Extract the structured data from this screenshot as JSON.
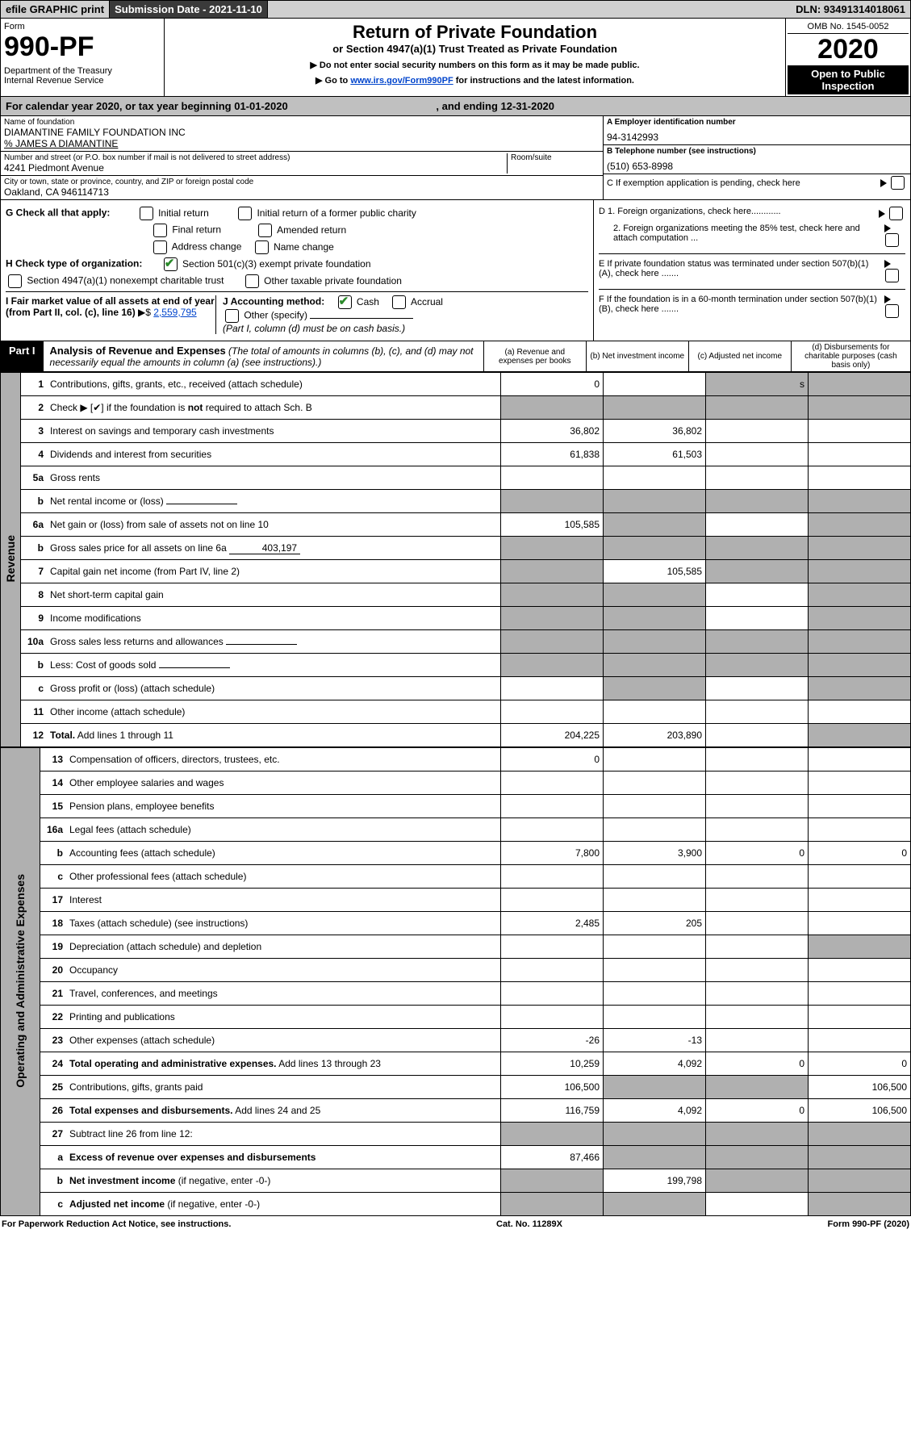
{
  "top": {
    "efile": "efile GRAPHIC print",
    "submission_label": "Submission Date - 2021-11-10",
    "dln": "DLN: 93491314018061"
  },
  "header": {
    "form_word": "Form",
    "form_number": "990-PF",
    "dept1": "Department of the Treasury",
    "dept2": "Internal Revenue Service",
    "title": "Return of Private Foundation",
    "subtitle": "or Section 4947(a)(1) Trust Treated as Private Foundation",
    "instr1": "▶ Do not enter social security numbers on this form as it may be made public.",
    "instr2_a": "▶ Go to ",
    "instr2_link": "www.irs.gov/Form990PF",
    "instr2_b": " for instructions and the latest information.",
    "omb": "OMB No. 1545-0052",
    "year": "2020",
    "inspection1": "Open to Public",
    "inspection2": "Inspection"
  },
  "calendar": {
    "a": "For calendar year 2020, or tax year beginning 01-01-2020",
    "b": ", and ending 12-31-2020"
  },
  "entity": {
    "name_label": "Name of foundation",
    "name": "DIAMANTINE FAMILY FOUNDATION INC",
    "care_of": "% JAMES A DIAMANTINE",
    "addr_label": "Number and street (or P.O. box number if mail is not delivered to street address)",
    "room_label": "Room/suite",
    "addr": "4241 Piedmont Avenue",
    "city_label": "City or town, state or province, country, and ZIP or foreign postal code",
    "city": "Oakland, CA  946114713",
    "ein_label": "A Employer identification number",
    "ein": "94-3142993",
    "phone_label": "B Telephone number (see instructions)",
    "phone": "(510) 653-8998",
    "c_label": "C If exemption application is pending, check here"
  },
  "checks": {
    "g_label": "G Check all that apply:",
    "g_initial": "Initial return",
    "g_initial_former": "Initial return of a former public charity",
    "g_final": "Final return",
    "g_amended": "Amended return",
    "g_address": "Address change",
    "g_name": "Name change",
    "h_label": "H Check type of organization:",
    "h_501c3": "Section 501(c)(3) exempt private foundation",
    "h_4947": "Section 4947(a)(1) nonexempt charitable trust",
    "h_other": "Other taxable private foundation",
    "i_label": "I Fair market value of all assets at end of year (from Part II, col. (c), line 16)",
    "i_amount": "2,559,795",
    "j_label": "J Accounting method:",
    "j_cash": "Cash",
    "j_accrual": "Accrual",
    "j_other": "Other (specify)",
    "j_note": "(Part I, column (d) must be on cash basis.)",
    "d1": "D 1. Foreign organizations, check here............",
    "d2": "2. Foreign organizations meeting the 85% test, check here and attach computation ...",
    "e": "E  If private foundation status was terminated under section 507(b)(1)(A), check here .......",
    "f": "F  If the foundation is in a 60-month termination under section 507(b)(1)(B), check here .......",
    "dollar": "▶$ "
  },
  "part1": {
    "label": "Part I",
    "title": "Analysis of Revenue and Expenses",
    "title_note": " (The total of amounts in columns (b), (c), and (d) may not necessarily equal the amounts in column (a) (see instructions).)",
    "col_a": "(a)  Revenue and expenses per books",
    "col_b": "(b)  Net investment income",
    "col_c": "(c)  Adjusted net income",
    "col_d": "(d)  Disbursements for charitable purposes (cash basis only)",
    "side_rev": "Revenue",
    "side_exp": "Operating and Administrative Expenses"
  },
  "rows": [
    {
      "n": "1",
      "d": "Contributions, gifts, grants, etc., received (attach schedule)",
      "a": "0",
      "b": "",
      "c": "s",
      "ds": "s"
    },
    {
      "n": "2",
      "d": "Check ▶ [✔] if the foundation is <b>not</b> required to attach Sch. B",
      "dots": true,
      "as": "s",
      "bs": "s",
      "cs": "s",
      "ds": "s"
    },
    {
      "n": "3",
      "d": "Interest on savings and temporary cash investments",
      "a": "36,802",
      "b": "36,802"
    },
    {
      "n": "4",
      "d": "Dividends and interest from securities",
      "dots": true,
      "a": "61,838",
      "b": "61,503"
    },
    {
      "n": "5a",
      "d": "Gross rents",
      "dots": true
    },
    {
      "n": "b",
      "d": "Net rental income or (loss)",
      "inline": true,
      "as": "s",
      "bs": "s",
      "cs": "s",
      "ds": "s"
    },
    {
      "n": "6a",
      "d": "Net gain or (loss) from sale of assets not on line 10",
      "a": "105,585",
      "bs": "s",
      "ds": "s"
    },
    {
      "n": "b",
      "d": "Gross sales price for all assets on line 6a",
      "inline_val": "403,197",
      "as": "s",
      "bs": "s",
      "cs": "s",
      "ds": "s"
    },
    {
      "n": "7",
      "d": "Capital gain net income (from Part IV, line 2)",
      "dots": true,
      "as": "s",
      "b": "105,585",
      "cs": "s",
      "ds": "s"
    },
    {
      "n": "8",
      "d": "Net short-term capital gain",
      "dots": true,
      "as": "s",
      "bs": "s",
      "ds": "s"
    },
    {
      "n": "9",
      "d": "Income modifications",
      "dots": true,
      "as": "s",
      "bs": "s",
      "ds": "s"
    },
    {
      "n": "10a",
      "d": "Gross sales less returns and allowances",
      "inline": true,
      "as": "s",
      "bs": "s",
      "cs": "s",
      "ds": "s"
    },
    {
      "n": "b",
      "d": "Less: Cost of goods sold",
      "dots": true,
      "inline": true,
      "as": "s",
      "bs": "s",
      "cs": "s",
      "ds": "s"
    },
    {
      "n": "c",
      "d": "Gross profit or (loss) (attach schedule)",
      "dots": true,
      "bs": "s",
      "ds": "s"
    },
    {
      "n": "11",
      "d": "Other income (attach schedule)",
      "dots": true
    },
    {
      "n": "12",
      "d": "<b>Total.</b> Add lines 1 through 11",
      "dots": true,
      "a": "204,225",
      "b": "203,890",
      "ds": "s"
    }
  ],
  "exp_rows": [
    {
      "n": "13",
      "d": "Compensation of officers, directors, trustees, etc.",
      "a": "0"
    },
    {
      "n": "14",
      "d": "Other employee salaries and wages",
      "dots": true
    },
    {
      "n": "15",
      "d": "Pension plans, employee benefits",
      "dots": true
    },
    {
      "n": "16a",
      "d": "Legal fees (attach schedule)",
      "dots": true
    },
    {
      "n": "b",
      "d": "Accounting fees (attach schedule)",
      "dots": true,
      "a": "7,800",
      "b": "3,900",
      "c": "0",
      "dd": "0"
    },
    {
      "n": "c",
      "d": "Other professional fees (attach schedule)",
      "dots": true
    },
    {
      "n": "17",
      "d": "Interest",
      "dots": true
    },
    {
      "n": "18",
      "d": "Taxes (attach schedule) (see instructions)",
      "dots": true,
      "a": "2,485",
      "b": "205"
    },
    {
      "n": "19",
      "d": "Depreciation (attach schedule) and depletion",
      "dots": true,
      "ds": "s"
    },
    {
      "n": "20",
      "d": "Occupancy",
      "dots": true
    },
    {
      "n": "21",
      "d": "Travel, conferences, and meetings",
      "dots": true
    },
    {
      "n": "22",
      "d": "Printing and publications",
      "dots": true
    },
    {
      "n": "23",
      "d": "Other expenses (attach schedule)",
      "dots": true,
      "a": "-26",
      "b": "-13"
    },
    {
      "n": "24",
      "d": "<b>Total operating and administrative expenses.</b> Add lines 13 through 23",
      "dots": true,
      "a": "10,259",
      "b": "4,092",
      "c": "0",
      "dd": "0"
    },
    {
      "n": "25",
      "d": "Contributions, gifts, grants paid",
      "dots": true,
      "a": "106,500",
      "bs": "s",
      "cs": "s",
      "dd": "106,500"
    },
    {
      "n": "26",
      "d": "<b>Total expenses and disbursements.</b> Add lines 24 and 25",
      "a": "116,759",
      "b": "4,092",
      "c": "0",
      "dd": "106,500"
    },
    {
      "n": "27",
      "d": "Subtract line 26 from line 12:",
      "as": "s",
      "bs": "s",
      "cs": "s",
      "ds": "s"
    },
    {
      "n": "a",
      "d": "<b>Excess of revenue over expenses and disbursements</b>",
      "a": "87,466",
      "bs": "s",
      "cs": "s",
      "ds": "s"
    },
    {
      "n": "b",
      "d": "<b>Net investment income</b> (if negative, enter -0-)",
      "as": "s",
      "b": "199,798",
      "cs": "s",
      "ds": "s"
    },
    {
      "n": "c",
      "d": "<b>Adjusted net income</b> (if negative, enter -0-)",
      "dots": true,
      "as": "s",
      "bs": "s",
      "ds": "s"
    }
  ],
  "footer": {
    "left": "For Paperwork Reduction Act Notice, see instructions.",
    "mid": "Cat. No. 11289X",
    "right": "Form 990-PF (2020)"
  }
}
